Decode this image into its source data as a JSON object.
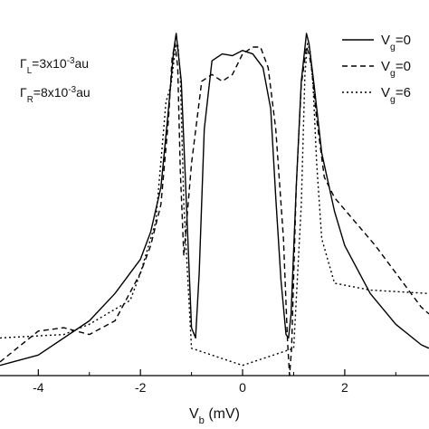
{
  "chart_data": {
    "type": "line",
    "title": "",
    "xlabel": {
      "main": "V",
      "sub": "b",
      "rest": " (mV)"
    },
    "ylabel": "",
    "xlim": [
      -4.75,
      3.65
    ],
    "ylim": [
      0,
      1.05
    ],
    "x_ticks": [
      -4,
      -2,
      0,
      2
    ],
    "x_tick_labels": [
      "-4",
      "-2",
      "0",
      "2"
    ],
    "grid": false,
    "legend_position": "top-right",
    "annotations": [
      {
        "main": "Γ",
        "sub": "L",
        "rest": "=3x10",
        "sup": "-3",
        "tail": "au"
      },
      {
        "main": "Γ",
        "sub": "R",
        "rest": "=8x10",
        "sup": "-3",
        "tail": "au"
      }
    ],
    "series": [
      {
        "name": {
          "main": "V",
          "sub": "g",
          "rest": "=0"
        },
        "style": "solid",
        "color": "#000000",
        "x": [
          -4.75,
          -4.0,
          -3.0,
          -2.5,
          -2.0,
          -1.8,
          -1.6,
          -1.45,
          -1.35,
          -1.3,
          -1.2,
          -1.1,
          -1.0,
          -0.92,
          -0.85,
          -0.75,
          -0.6,
          -0.4,
          -0.2,
          0.0,
          0.2,
          0.4,
          0.55,
          0.65,
          0.75,
          0.85,
          0.9,
          0.95,
          1.05,
          1.15,
          1.25,
          1.3,
          1.4,
          1.55,
          1.8,
          2.0,
          2.5,
          3.0,
          3.5,
          3.65
        ],
        "y": [
          0.03,
          0.06,
          0.16,
          0.24,
          0.34,
          0.42,
          0.55,
          0.78,
          0.95,
          1.0,
          0.86,
          0.5,
          0.14,
          0.11,
          0.3,
          0.72,
          0.92,
          0.94,
          0.935,
          0.95,
          0.94,
          0.9,
          0.78,
          0.52,
          0.28,
          0.12,
          0.11,
          0.18,
          0.55,
          0.86,
          1.0,
          0.97,
          0.85,
          0.65,
          0.48,
          0.38,
          0.24,
          0.15,
          0.09,
          0.08
        ]
      },
      {
        "name": {
          "main": "V",
          "sub": "g",
          "rest": "=0"
        },
        "style": "dashed",
        "color": "#000000",
        "x": [
          -4.75,
          -4.0,
          -3.5,
          -3.0,
          -2.5,
          -2.0,
          -1.8,
          -1.6,
          -1.45,
          -1.38,
          -1.32,
          -1.27,
          -1.22,
          -1.15,
          -1.0,
          -0.8,
          -0.6,
          -0.4,
          -0.2,
          0.0,
          0.2,
          0.35,
          0.5,
          0.65,
          0.8,
          0.88,
          0.92,
          0.96,
          1.05,
          1.15,
          1.25,
          1.3,
          1.35,
          1.45,
          1.6,
          1.8,
          2.2,
          2.6,
          3.0,
          3.5,
          3.65
        ],
        "y": [
          0.04,
          0.13,
          0.14,
          0.12,
          0.16,
          0.3,
          0.38,
          0.5,
          0.75,
          0.93,
          0.97,
          0.9,
          0.6,
          0.35,
          0.62,
          0.86,
          0.88,
          0.86,
          0.88,
          0.94,
          0.96,
          0.96,
          0.9,
          0.72,
          0.4,
          0.1,
          0.0,
          0.08,
          0.55,
          0.85,
          0.96,
          0.94,
          0.9,
          0.75,
          0.58,
          0.52,
          0.45,
          0.38,
          0.3,
          0.2,
          0.18
        ]
      },
      {
        "name": {
          "main": "V",
          "sub": "g",
          "rest": "=6"
        },
        "style": "dotted",
        "color": "#000000",
        "x": [
          -4.75,
          -3.5,
          -3.0,
          -2.2,
          -2.0,
          -1.7,
          -1.5,
          -1.4,
          -1.32,
          -1.27,
          -1.22,
          -1.15,
          -1.0,
          0.0,
          1.0,
          1.15,
          1.22,
          1.27,
          1.32,
          1.38,
          1.45,
          1.55,
          1.8,
          2.5,
          3.65
        ],
        "y": [
          0.11,
          0.12,
          0.15,
          0.22,
          0.3,
          0.45,
          0.8,
          0.85,
          0.95,
          0.97,
          0.88,
          0.5,
          0.08,
          0.03,
          0.08,
          0.5,
          0.88,
          0.97,
          0.95,
          0.85,
          0.62,
          0.4,
          0.27,
          0.25,
          0.24
        ]
      }
    ]
  }
}
